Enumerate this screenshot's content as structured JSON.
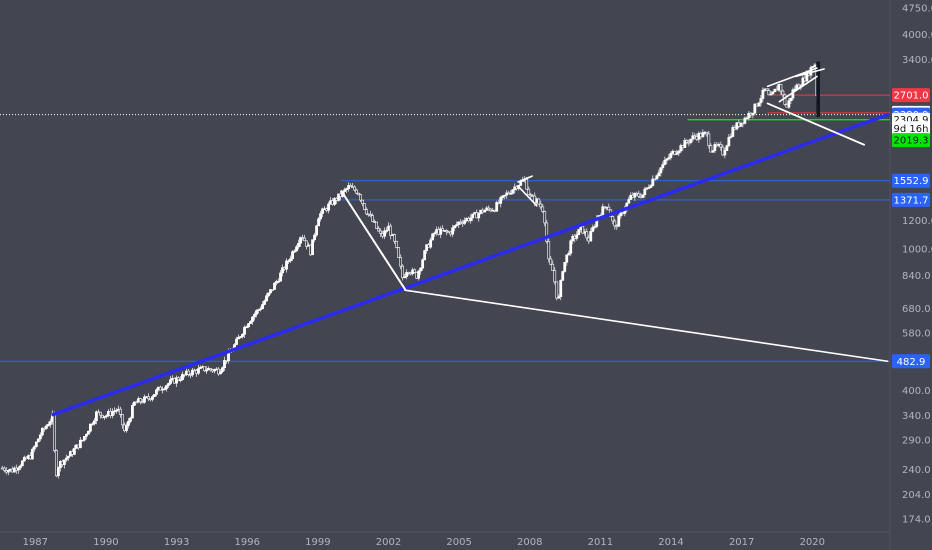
{
  "chart_data": {
    "type": "candlestick",
    "title": "",
    "xlabel": "",
    "ylabel": "",
    "y_scale": "log",
    "ylim": [
      160,
      5000
    ],
    "xlim": [
      1985.5,
      2023.3
    ],
    "x_ticks": [
      {
        "x": 1987,
        "label": "1987"
      },
      {
        "x": 1990,
        "label": "1990"
      },
      {
        "x": 1993,
        "label": "1993"
      },
      {
        "x": 1996,
        "label": "1996"
      },
      {
        "x": 1999,
        "label": "1999"
      },
      {
        "x": 2002,
        "label": "2002"
      },
      {
        "x": 2005,
        "label": "2005"
      },
      {
        "x": 2008,
        "label": "2008"
      },
      {
        "x": 2011,
        "label": "2011"
      },
      {
        "x": 2014,
        "label": "2014"
      },
      {
        "x": 2017,
        "label": "2017"
      },
      {
        "x": 2020,
        "label": "2020"
      }
    ],
    "y_ticks": [
      {
        "value": 174.0,
        "label": "174.0"
      },
      {
        "value": 204.0,
        "label": "204.0"
      },
      {
        "value": 240.0,
        "label": "240.0"
      },
      {
        "value": 290.0,
        "label": "290.0"
      },
      {
        "value": 340.0,
        "label": "340.0"
      },
      {
        "value": 400.0,
        "label": "400.0"
      },
      {
        "value": 580.0,
        "label": "580.0"
      },
      {
        "value": 680.0,
        "label": "680.0"
      },
      {
        "value": 840.0,
        "label": "840.0"
      },
      {
        "value": 1000.0,
        "label": "1000.0"
      },
      {
        "value": 1200.0,
        "label": "1200.0"
      },
      {
        "value": 3400.0,
        "label": "3400.0"
      },
      {
        "value": 4000.0,
        "label": "4000.0"
      },
      {
        "value": 4750.0,
        "label": "4750.0"
      }
    ],
    "price_tags": [
      {
        "value": 2701.0,
        "label": "2701.0",
        "bg": "#f23645",
        "fg": "#ffffff"
      },
      {
        "value": 2408.6,
        "label": "2408.6",
        "bg": "#ffffff",
        "fg": "#131722"
      },
      {
        "value": 2380.9,
        "label": "2380.9",
        "bg": "#2962ff",
        "fg": "#ffffff"
      },
      {
        "value": 2304.9,
        "label": "2304.9",
        "bg": "#ffffff",
        "fg": "#131722"
      },
      {
        "value": 2180.0,
        "label": "9d 16h",
        "bg": "#ffffff",
        "fg": "#131722"
      },
      {
        "value": 2019.3,
        "label": "2019.3",
        "bg": "#00e600",
        "fg": "#131722"
      },
      {
        "value": 1552.9,
        "label": "1552.9",
        "bg": "#2962ff",
        "fg": "#ffffff"
      },
      {
        "value": 1371.7,
        "label": "1371.7",
        "bg": "#2962ff",
        "fg": "#ffffff"
      },
      {
        "value": 482.9,
        "label": "482.9",
        "bg": "#2962ff",
        "fg": "#ffffff"
      }
    ],
    "horizontal_levels": [
      {
        "value": 2701.0,
        "x_from": 2018.1,
        "color": "#f23645",
        "width": 1
      },
      {
        "value": 2408.6,
        "x_from": 2018.1,
        "color": "#f23645",
        "width": 1
      },
      {
        "value": 2304.9,
        "x_from": 2014.7,
        "color": "#00e600",
        "width": 1.3
      },
      {
        "value": 1552.9,
        "x_from": 2000.0,
        "color": "#2962ff",
        "width": 1
      },
      {
        "value": 1371.7,
        "x_from": 1999.8,
        "color": "#2962ff",
        "width": 1
      },
      {
        "value": 482.9,
        "x_from": 1985.5,
        "color": "#2962ff",
        "width": 1
      }
    ],
    "current_price_line": {
      "value": 2380.9,
      "color": "#ffffff"
    },
    "trend_lines": [
      {
        "name": "long-term-support",
        "color": "#2b2bf0",
        "width": 3.5,
        "points": [
          [
            1987.75,
            342
          ],
          [
            2023.2,
            2380.9
          ]
        ]
      },
      {
        "name": "megaphone-lower",
        "color": "#ffffff",
        "width": 1.6,
        "points": [
          [
            2002.7,
            765
          ],
          [
            2023.2,
            482.9
          ]
        ]
      },
      {
        "name": "dotcom-decline",
        "color": "#ffffff",
        "width": 2,
        "points": [
          [
            2000.0,
            1452
          ],
          [
            2002.7,
            770
          ]
        ]
      },
      {
        "name": "2007-top",
        "color": "#ffffff",
        "width": 1.6,
        "points": [
          [
            2007.5,
            1540
          ],
          [
            2008.1,
            1600
          ]
        ]
      },
      {
        "name": "2007-drop",
        "color": "#ffffff",
        "width": 1.6,
        "points": [
          [
            2007.5,
            1500
          ],
          [
            2008.3,
            1320
          ]
        ]
      },
      {
        "name": "wedge-upper",
        "color": "#ffffff",
        "width": 1.6,
        "points": [
          [
            2018.1,
            2860
          ],
          [
            2020.2,
            3220
          ]
        ]
      },
      {
        "name": "wedge-lower",
        "color": "#ffffff",
        "width": 1.6,
        "points": [
          [
            2018.6,
            2590
          ],
          [
            2020.2,
            3050
          ]
        ]
      },
      {
        "name": "2020-resistance",
        "color": "#ffffff",
        "width": 1.6,
        "points": [
          [
            2019.3,
            3050
          ],
          [
            2020.5,
            3200
          ]
        ]
      },
      {
        "name": "2018-channel-down",
        "color": "#ffffff",
        "width": 1.8,
        "points": [
          [
            2018.1,
            2560
          ],
          [
            2022.2,
            1960
          ]
        ]
      }
    ],
    "price_path": [
      [
        1985.6,
        242
      ],
      [
        1986.0,
        238
      ],
      [
        1986.4,
        250
      ],
      [
        1986.8,
        262
      ],
      [
        1987.2,
        300
      ],
      [
        1987.6,
        328
      ],
      [
        1987.75,
        338
      ],
      [
        1987.85,
        230
      ],
      [
        1988.0,
        248
      ],
      [
        1988.5,
        265
      ],
      [
        1989.0,
        290
      ],
      [
        1989.6,
        345
      ],
      [
        1990.0,
        340
      ],
      [
        1990.5,
        355
      ],
      [
        1990.8,
        305
      ],
      [
        1991.2,
        368
      ],
      [
        1991.8,
        380
      ],
      [
        1992.4,
        410
      ],
      [
        1993.0,
        430
      ],
      [
        1993.6,
        450
      ],
      [
        1994.2,
        460
      ],
      [
        1994.8,
        455
      ],
      [
        1995.5,
        540
      ],
      [
        1996.0,
        620
      ],
      [
        1996.6,
        690
      ],
      [
        1997.2,
        800
      ],
      [
        1997.8,
        940
      ],
      [
        1998.3,
        1100
      ],
      [
        1998.7,
        980
      ],
      [
        1999.0,
        1230
      ],
      [
        1999.5,
        1330
      ],
      [
        2000.0,
        1420
      ],
      [
        2000.3,
        1490
      ],
      [
        2000.7,
        1450
      ],
      [
        2001.0,
        1300
      ],
      [
        2001.4,
        1170
      ],
      [
        2001.7,
        1080
      ],
      [
        2002.0,
        1150
      ],
      [
        2002.3,
        1020
      ],
      [
        2002.6,
        830
      ],
      [
        2002.8,
        880
      ],
      [
        2003.2,
        840
      ],
      [
        2003.6,
        1000
      ],
      [
        2004.0,
        1120
      ],
      [
        2004.6,
        1110
      ],
      [
        2005.0,
        1190
      ],
      [
        2005.6,
        1230
      ],
      [
        2006.0,
        1280
      ],
      [
        2006.5,
        1300
      ],
      [
        2007.0,
        1420
      ],
      [
        2007.5,
        1520
      ],
      [
        2007.8,
        1560
      ],
      [
        2008.0,
        1400
      ],
      [
        2008.3,
        1360
      ],
      [
        2008.6,
        1280
      ],
      [
        2008.8,
        920
      ],
      [
        2009.0,
        860
      ],
      [
        2009.2,
        700
      ],
      [
        2009.4,
        880
      ],
      [
        2009.8,
        1060
      ],
      [
        2010.2,
        1140
      ],
      [
        2010.5,
        1060
      ],
      [
        2010.9,
        1240
      ],
      [
        2011.3,
        1340
      ],
      [
        2011.6,
        1140
      ],
      [
        2011.9,
        1260
      ],
      [
        2012.3,
        1400
      ],
      [
        2012.8,
        1420
      ],
      [
        2013.2,
        1560
      ],
      [
        2013.6,
        1700
      ],
      [
        2014.0,
        1840
      ],
      [
        2014.6,
        1980
      ],
      [
        2015.0,
        2070
      ],
      [
        2015.5,
        2100
      ],
      [
        2015.7,
        1900
      ],
      [
        2016.0,
        1940
      ],
      [
        2016.2,
        1860
      ],
      [
        2016.6,
        2160
      ],
      [
        2017.0,
        2280
      ],
      [
        2017.5,
        2460
      ],
      [
        2018.0,
        2800
      ],
      [
        2018.2,
        2640
      ],
      [
        2018.6,
        2900
      ],
      [
        2018.9,
        2480
      ],
      [
        2019.2,
        2800
      ],
      [
        2019.6,
        2970
      ],
      [
        2020.0,
        3250
      ],
      [
        2020.1,
        3380
      ],
      [
        2020.25,
        2400
      ]
    ]
  }
}
